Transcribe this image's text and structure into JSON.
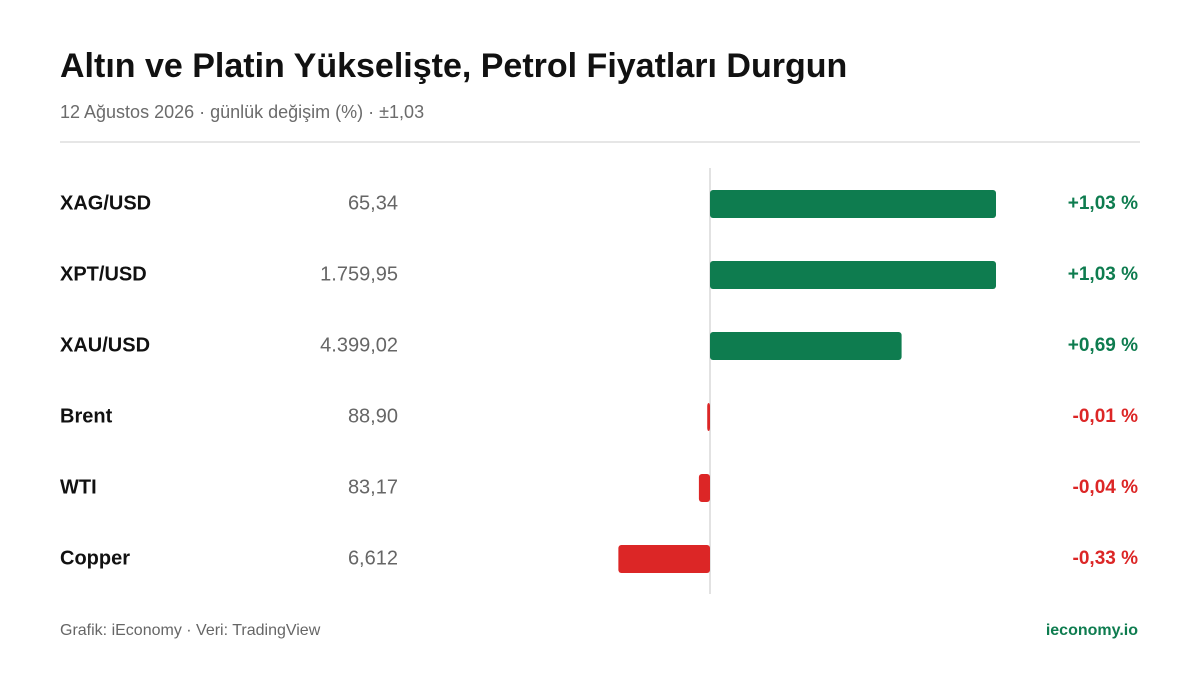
{
  "chart_data": {
    "type": "bar",
    "orientation": "horizontal",
    "title": "Altın ve Platin Yükselişte, Petrol Fiyatları Durgun",
    "subtitle": "12 Ağustos 2026 · günlük değişim (%) · ±1,03",
    "categories": [
      "XAG/USD",
      "XPT/USD",
      "XAU/USD",
      "Brent",
      "WTI",
      "Copper"
    ],
    "prices": [
      "65,34",
      "1.759,95",
      "4.399,02",
      "88,90",
      "83,17",
      "6,612"
    ],
    "values": [
      1.03,
      1.03,
      0.69,
      -0.01,
      -0.04,
      -0.33
    ],
    "value_labels": [
      "+1,03 %",
      "+1,03 %",
      "+0,69 %",
      "-0,01 %",
      "-0,04 %",
      "-0,33 %"
    ],
    "positive_color": "#0e7c4f",
    "negative_color": "#dc2626",
    "xlim": [
      -1.03,
      1.03
    ],
    "footer": "Grafik: iEconomy · Veri: TradingView",
    "site": "ieconomy.io"
  }
}
